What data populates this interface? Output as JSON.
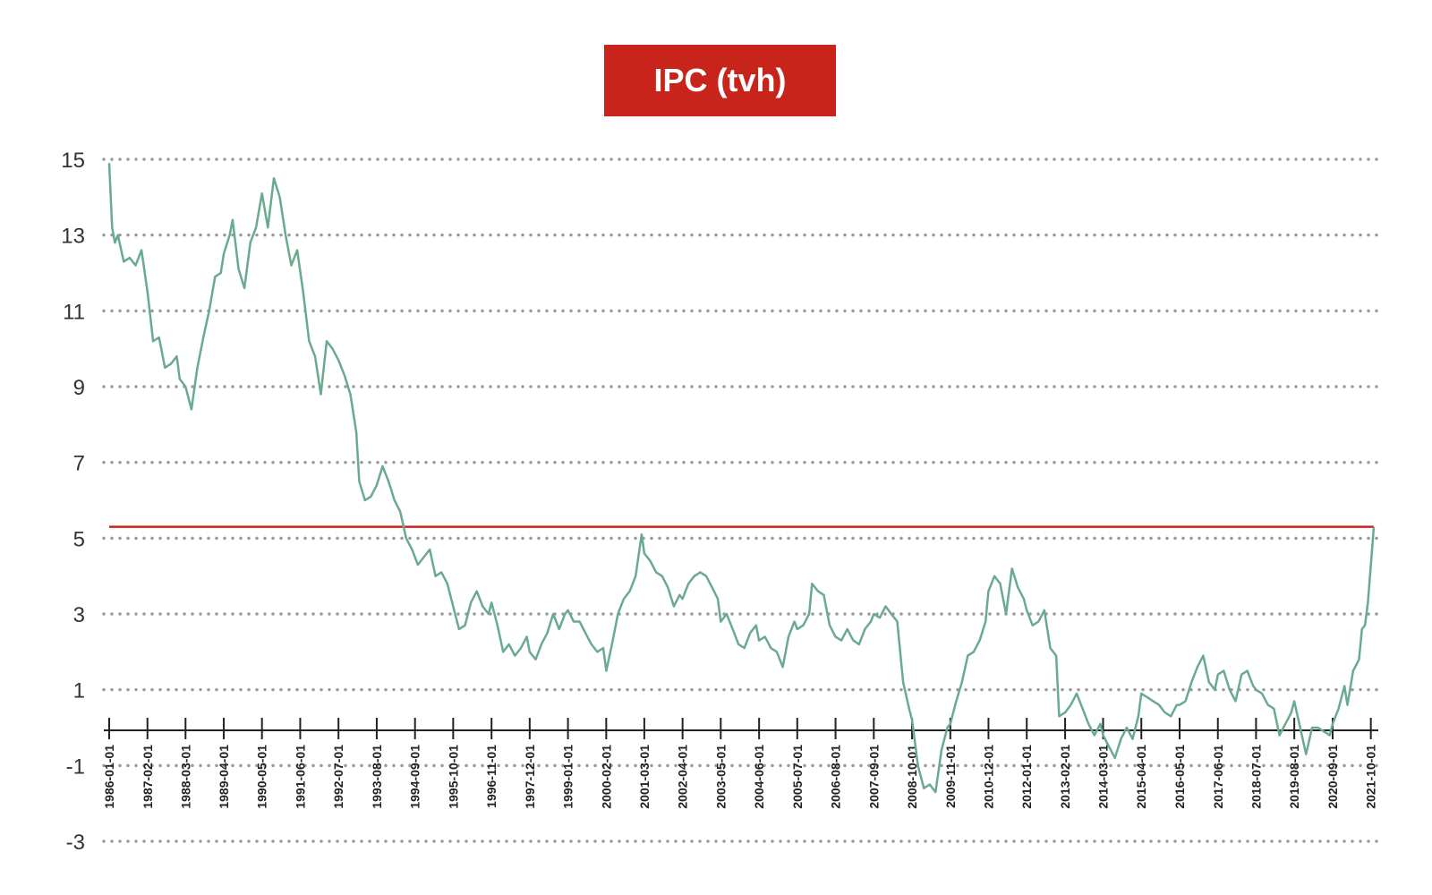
{
  "chart_data": {
    "type": "line",
    "title": "",
    "xlabel": "",
    "ylabel": "",
    "ylim": [
      -3,
      15
    ],
    "xlim": [
      "1986-01-01",
      "2021-11-01"
    ],
    "y_ticks": [
      "15",
      "13",
      "11",
      "9",
      "7",
      "5",
      "3",
      "1",
      "-1",
      "-3"
    ],
    "y_tick_values": [
      15,
      13,
      11,
      9,
      7,
      5,
      3,
      1,
      -1,
      -3
    ],
    "x_ticks": [
      "1986-01-01",
      "1987-02-01",
      "1988-03-01",
      "1989-04-01",
      "1990-05-01",
      "1991-06-01",
      "1992-07-01",
      "1993-08-01",
      "1994-09-01",
      "1995-10-01",
      "1996-11-01",
      "1997-12-01",
      "1999-01-01",
      "2000-02-01",
      "2001-03-01",
      "2002-04-01",
      "2003-05-01",
      "2004-06-01",
      "2005-07-01",
      "2006-08-01",
      "2007-09-01",
      "2008-10-01",
      "2009-11-01",
      "2010-12-01",
      "2012-01-01",
      "2013-02-01",
      "2014-03-01",
      "2015-04-01",
      "2016-05-01",
      "2017-06-01",
      "2018-07-01",
      "2019-08-01",
      "2020-09-01",
      "2021-10-01"
    ],
    "grid": "horizontal-dotted",
    "legend": "top-center",
    "series": [
      {
        "name": "IPC (tvh)",
        "color": "#6aaa8e",
        "points": [
          [
            "1986-01-01",
            14.9
          ],
          [
            "1986-02-01",
            13.2
          ],
          [
            "1986-03-01",
            12.8
          ],
          [
            "1986-04-01",
            13.0
          ],
          [
            "1986-06-01",
            12.3
          ],
          [
            "1986-08-01",
            12.4
          ],
          [
            "1986-10-01",
            12.2
          ],
          [
            "1986-12-01",
            12.6
          ],
          [
            "1987-02-01",
            11.5
          ],
          [
            "1987-04-01",
            10.2
          ],
          [
            "1987-06-01",
            10.3
          ],
          [
            "1987-08-01",
            9.5
          ],
          [
            "1987-10-01",
            9.6
          ],
          [
            "1987-12-01",
            9.8
          ],
          [
            "1988-01-01",
            9.2
          ],
          [
            "1988-03-01",
            9.0
          ],
          [
            "1988-05-01",
            8.4
          ],
          [
            "1988-07-01",
            9.5
          ],
          [
            "1988-09-01",
            10.3
          ],
          [
            "1988-11-01",
            11.0
          ],
          [
            "1989-01-01",
            11.9
          ],
          [
            "1989-03-01",
            12.0
          ],
          [
            "1989-04-01",
            12.5
          ],
          [
            "1989-06-01",
            13.0
          ],
          [
            "1989-07-01",
            13.4
          ],
          [
            "1989-09-01",
            12.1
          ],
          [
            "1989-11-01",
            11.6
          ],
          [
            "1990-01-01",
            12.8
          ],
          [
            "1990-03-01",
            13.2
          ],
          [
            "1990-05-01",
            14.1
          ],
          [
            "1990-07-01",
            13.2
          ],
          [
            "1990-09-01",
            14.5
          ],
          [
            "1990-11-01",
            14.0
          ],
          [
            "1991-01-01",
            13.0
          ],
          [
            "1991-03-01",
            12.2
          ],
          [
            "1991-05-01",
            12.6
          ],
          [
            "1991-07-01",
            11.5
          ],
          [
            "1991-09-01",
            10.2
          ],
          [
            "1991-11-01",
            9.8
          ],
          [
            "1992-01-01",
            8.8
          ],
          [
            "1992-03-01",
            10.2
          ],
          [
            "1992-05-01",
            10.0
          ],
          [
            "1992-07-01",
            9.7
          ],
          [
            "1992-09-01",
            9.3
          ],
          [
            "1992-11-01",
            8.8
          ],
          [
            "1993-01-01",
            7.8
          ],
          [
            "1993-02-01",
            6.5
          ],
          [
            "1993-04-01",
            6.0
          ],
          [
            "1993-06-01",
            6.1
          ],
          [
            "1993-08-01",
            6.4
          ],
          [
            "1993-10-01",
            6.9
          ],
          [
            "1993-12-01",
            6.5
          ],
          [
            "1994-02-01",
            6.0
          ],
          [
            "1994-04-01",
            5.7
          ],
          [
            "1994-06-01",
            5.0
          ],
          [
            "1994-08-01",
            4.7
          ],
          [
            "1994-10-01",
            4.3
          ],
          [
            "1994-12-01",
            4.5
          ],
          [
            "1995-02-01",
            4.7
          ],
          [
            "1995-04-01",
            4.0
          ],
          [
            "1995-06-01",
            4.1
          ],
          [
            "1995-08-01",
            3.8
          ],
          [
            "1995-10-01",
            3.2
          ],
          [
            "1995-12-01",
            2.6
          ],
          [
            "1996-02-01",
            2.7
          ],
          [
            "1996-04-01",
            3.3
          ],
          [
            "1996-06-01",
            3.6
          ],
          [
            "1996-08-01",
            3.2
          ],
          [
            "1996-10-01",
            3.0
          ],
          [
            "1996-11-01",
            3.3
          ],
          [
            "1997-01-01",
            2.7
          ],
          [
            "1997-03-01",
            2.0
          ],
          [
            "1997-05-01",
            2.2
          ],
          [
            "1997-07-01",
            1.9
          ],
          [
            "1997-09-01",
            2.1
          ],
          [
            "1997-11-01",
            2.4
          ],
          [
            "1997-12-01",
            2.0
          ],
          [
            "1998-02-01",
            1.8
          ],
          [
            "1998-04-01",
            2.2
          ],
          [
            "1998-06-01",
            2.5
          ],
          [
            "1998-08-01",
            3.0
          ],
          [
            "1998-10-01",
            2.6
          ],
          [
            "1998-12-01",
            3.0
          ],
          [
            "1999-01-01",
            3.1
          ],
          [
            "1999-03-01",
            2.8
          ],
          [
            "1999-05-01",
            2.8
          ],
          [
            "1999-07-01",
            2.5
          ],
          [
            "1999-09-01",
            2.2
          ],
          [
            "1999-11-01",
            2.0
          ],
          [
            "2000-01-01",
            2.1
          ],
          [
            "2000-02-01",
            1.5
          ],
          [
            "2000-04-01",
            2.2
          ],
          [
            "2000-06-01",
            3.0
          ],
          [
            "2000-08-01",
            3.4
          ],
          [
            "2000-10-01",
            3.6
          ],
          [
            "2000-12-01",
            4.0
          ],
          [
            "2001-02-01",
            5.1
          ],
          [
            "2001-03-01",
            4.6
          ],
          [
            "2001-05-01",
            4.4
          ],
          [
            "2001-07-01",
            4.1
          ],
          [
            "2001-09-01",
            4.0
          ],
          [
            "2001-11-01",
            3.7
          ],
          [
            "2002-01-01",
            3.2
          ],
          [
            "2002-03-01",
            3.5
          ],
          [
            "2002-04-01",
            3.4
          ],
          [
            "2002-06-01",
            3.8
          ],
          [
            "2002-08-01",
            4.0
          ],
          [
            "2002-10-01",
            4.1
          ],
          [
            "2002-12-01",
            4.0
          ],
          [
            "2003-02-01",
            3.7
          ],
          [
            "2003-04-01",
            3.4
          ],
          [
            "2003-05-01",
            2.8
          ],
          [
            "2003-07-01",
            3.0
          ],
          [
            "2003-09-01",
            2.6
          ],
          [
            "2003-11-01",
            2.2
          ],
          [
            "2004-01-01",
            2.1
          ],
          [
            "2004-03-01",
            2.5
          ],
          [
            "2004-05-01",
            2.7
          ],
          [
            "2004-06-01",
            2.3
          ],
          [
            "2004-08-01",
            2.4
          ],
          [
            "2004-10-01",
            2.1
          ],
          [
            "2004-12-01",
            2.0
          ],
          [
            "2005-02-01",
            1.6
          ],
          [
            "2005-04-01",
            2.4
          ],
          [
            "2005-06-01",
            2.8
          ],
          [
            "2005-07-01",
            2.6
          ],
          [
            "2005-09-01",
            2.7
          ],
          [
            "2005-11-01",
            3.0
          ],
          [
            "2005-12-01",
            3.8
          ],
          [
            "2006-02-01",
            3.6
          ],
          [
            "2006-04-01",
            3.5
          ],
          [
            "2006-06-01",
            2.7
          ],
          [
            "2006-08-01",
            2.4
          ],
          [
            "2006-10-01",
            2.3
          ],
          [
            "2006-12-01",
            2.6
          ],
          [
            "2007-02-01",
            2.3
          ],
          [
            "2007-04-01",
            2.2
          ],
          [
            "2007-06-01",
            2.6
          ],
          [
            "2007-08-01",
            2.8
          ],
          [
            "2007-09-01",
            3.0
          ],
          [
            "2007-11-01",
            2.9
          ],
          [
            "2008-01-01",
            3.2
          ],
          [
            "2008-03-01",
            3.0
          ],
          [
            "2008-05-01",
            2.8
          ],
          [
            "2008-07-01",
            1.2
          ],
          [
            "2008-09-01",
            0.5
          ],
          [
            "2008-10-01",
            0.2
          ],
          [
            "2008-12-01",
            -1.0
          ],
          [
            "2009-02-01",
            -1.6
          ],
          [
            "2009-04-01",
            -1.5
          ],
          [
            "2009-06-01",
            -1.7
          ],
          [
            "2009-08-01",
            -0.6
          ],
          [
            "2009-10-01",
            0.0
          ],
          [
            "2009-11-01",
            0.1
          ],
          [
            "2010-01-01",
            0.7
          ],
          [
            "2010-03-01",
            1.2
          ],
          [
            "2010-05-01",
            1.9
          ],
          [
            "2010-07-01",
            2.0
          ],
          [
            "2010-09-01",
            2.3
          ],
          [
            "2010-11-01",
            2.8
          ],
          [
            "2010-12-01",
            3.6
          ],
          [
            "2011-02-01",
            4.0
          ],
          [
            "2011-04-01",
            3.8
          ],
          [
            "2011-06-01",
            3.0
          ],
          [
            "2011-08-01",
            4.2
          ],
          [
            "2011-10-01",
            3.7
          ],
          [
            "2011-12-01",
            3.4
          ],
          [
            "2012-01-01",
            3.1
          ],
          [
            "2012-03-01",
            2.7
          ],
          [
            "2012-05-01",
            2.8
          ],
          [
            "2012-07-01",
            3.1
          ],
          [
            "2012-09-01",
            2.1
          ],
          [
            "2012-11-01",
            1.9
          ],
          [
            "2012-12-01",
            0.3
          ],
          [
            "2013-02-01",
            0.4
          ],
          [
            "2013-04-01",
            0.6
          ],
          [
            "2013-06-01",
            0.9
          ],
          [
            "2013-08-01",
            0.5
          ],
          [
            "2013-10-01",
            0.1
          ],
          [
            "2013-12-01",
            -0.2
          ],
          [
            "2014-02-01",
            0.1
          ],
          [
            "2014-03-01",
            -0.2
          ],
          [
            "2014-05-01",
            -0.5
          ],
          [
            "2014-07-01",
            -0.8
          ],
          [
            "2014-09-01",
            -0.3
          ],
          [
            "2014-11-01",
            0.0
          ],
          [
            "2015-01-01",
            -0.3
          ],
          [
            "2015-03-01",
            0.3
          ],
          [
            "2015-04-01",
            0.9
          ],
          [
            "2015-06-01",
            0.8
          ],
          [
            "2015-08-01",
            0.7
          ],
          [
            "2015-10-01",
            0.6
          ],
          [
            "2015-12-01",
            0.4
          ],
          [
            "2016-02-01",
            0.3
          ],
          [
            "2016-04-01",
            0.6
          ],
          [
            "2016-05-01",
            0.6
          ],
          [
            "2016-07-01",
            0.7
          ],
          [
            "2016-09-01",
            1.2
          ],
          [
            "2016-11-01",
            1.6
          ],
          [
            "2017-01-01",
            1.9
          ],
          [
            "2017-03-01",
            1.2
          ],
          [
            "2017-05-01",
            1.0
          ],
          [
            "2017-06-01",
            1.4
          ],
          [
            "2017-08-01",
            1.5
          ],
          [
            "2017-10-01",
            1.0
          ],
          [
            "2017-12-01",
            0.7
          ],
          [
            "2018-02-01",
            1.4
          ],
          [
            "2018-04-01",
            1.5
          ],
          [
            "2018-06-01",
            1.1
          ],
          [
            "2018-07-01",
            1.0
          ],
          [
            "2018-09-01",
            0.9
          ],
          [
            "2018-11-01",
            0.6
          ],
          [
            "2019-01-01",
            0.5
          ],
          [
            "2019-03-01",
            -0.2
          ],
          [
            "2019-05-01",
            0.1
          ],
          [
            "2019-07-01",
            0.4
          ],
          [
            "2019-08-01",
            0.7
          ],
          [
            "2019-10-01",
            0.0
          ],
          [
            "2019-12-01",
            -0.7
          ],
          [
            "2020-02-01",
            0.0
          ],
          [
            "2020-04-01",
            0.0
          ],
          [
            "2020-06-01",
            -0.1
          ],
          [
            "2020-08-01",
            -0.2
          ],
          [
            "2020-09-01",
            0.1
          ],
          [
            "2020-11-01",
            0.5
          ],
          [
            "2021-01-01",
            1.1
          ],
          [
            "2021-02-01",
            0.6
          ],
          [
            "2021-04-01",
            1.5
          ],
          [
            "2021-06-01",
            1.8
          ],
          [
            "2021-07-01",
            2.6
          ],
          [
            "2021-08-01",
            2.7
          ],
          [
            "2021-09-01",
            3.3
          ],
          [
            "2021-10-01",
            4.3
          ],
          [
            "2021-11-01",
            5.3
          ]
        ]
      }
    ],
    "reference_line": {
      "y": 5.3,
      "color": "#c8241c"
    },
    "legend_box_color": "#c8241c"
  }
}
